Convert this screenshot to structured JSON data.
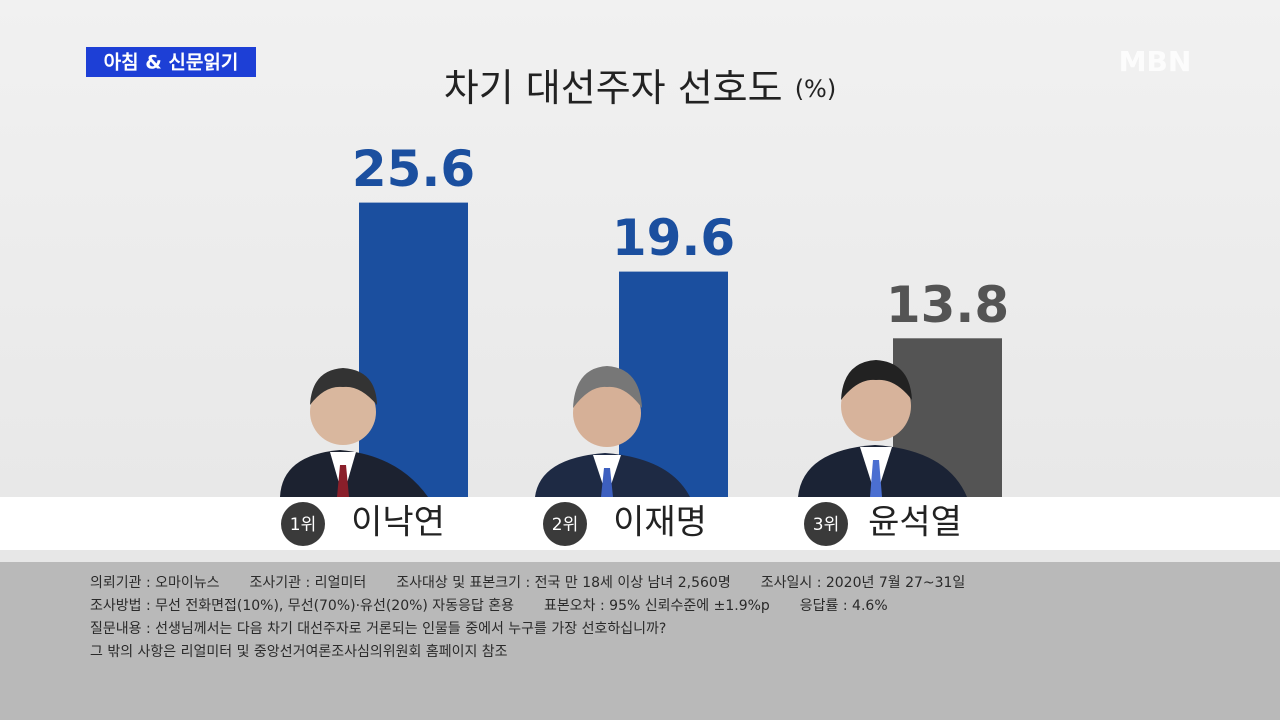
{
  "badge": "아침 & 신문읽기",
  "logo": "MBN",
  "chart_data": {
    "type": "bar",
    "title": "차기 대선주자 선호도",
    "unit": "(%)",
    "categories": [
      "이낙연",
      "이재명",
      "윤석열"
    ],
    "ranks": [
      "1위",
      "2위",
      "3위"
    ],
    "values": [
      25.6,
      19.6,
      13.8
    ],
    "colors": [
      "#1b4f9f",
      "#1b4f9f",
      "#545454"
    ],
    "ylim": [
      0,
      30
    ]
  },
  "footnotes": [
    [
      "의뢰기관 : 오마이뉴스",
      "조사기관 : 리얼미터",
      "조사대상 및 표본크기 : 전국 만 18세 이상 남녀 2,560명",
      "조사일시 : 2020년 7월 27~31일"
    ],
    [
      "조사방법 : 무선 전화면접(10%), 무선(70%)·유선(20%) 자동응답 혼용",
      "표본오차 : 95% 신뢰수준에 ±1.9%p",
      "응답률 : 4.6%"
    ],
    [
      "질문내용 : 선생님께서는 다음 차기 대선주자로 거론되는 인물들 중에서 누구를 가장 선호하십니까?"
    ],
    [
      "그 밖의 사항은 리얼미터 및 중앙선거여론조사심의위원회 홈페이지 참조"
    ]
  ]
}
